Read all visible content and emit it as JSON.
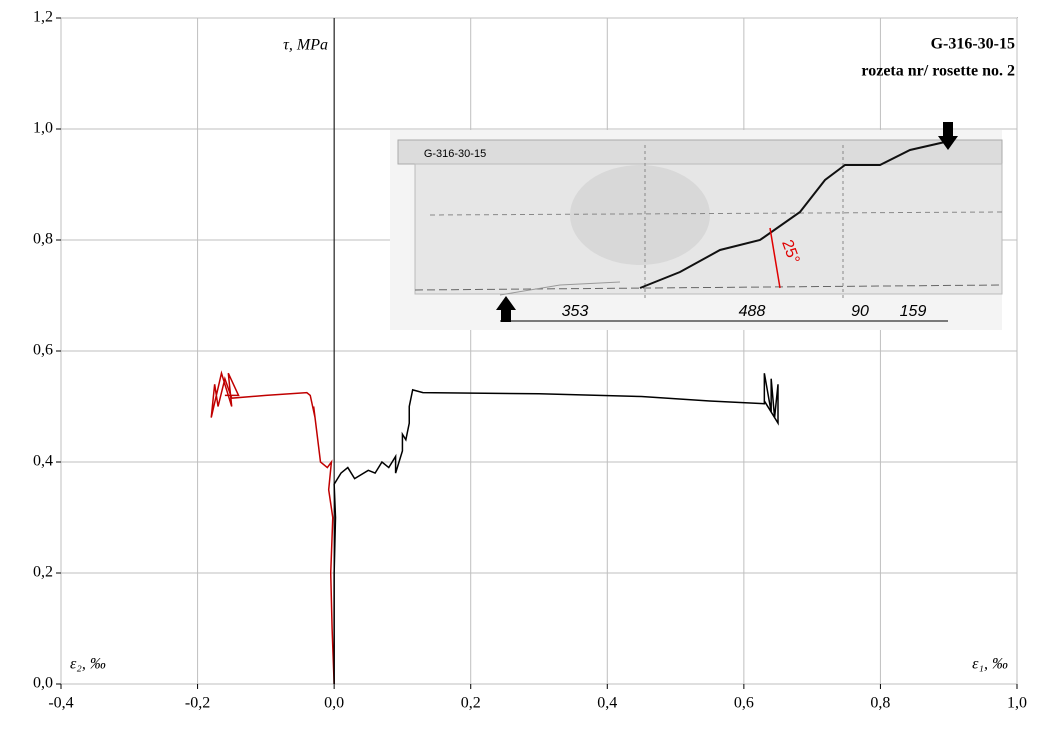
{
  "chart_data": {
    "type": "line",
    "title": "G-316-30-15",
    "subtitle": "rozeta nr/ rosette no. 2",
    "y_label": "τ, MPa",
    "x_label_left": "ε₂, ‰",
    "x_label_right": "ε₁, ‰",
    "xlim": [
      -0.4,
      1.0
    ],
    "ylim": [
      0,
      1.2
    ],
    "xticks": [
      {
        "value": -0.4,
        "label": "-0,4"
      },
      {
        "value": -0.2,
        "label": "-0,2"
      },
      {
        "value": 0,
        "label": "0,0"
      },
      {
        "value": 0.2,
        "label": "0,2"
      },
      {
        "value": 0.4,
        "label": "0,4"
      },
      {
        "value": 0.6,
        "label": "0,6"
      },
      {
        "value": 0.8,
        "label": "0,8"
      },
      {
        "value": 1.0,
        "label": "1,0"
      }
    ],
    "yticks": [
      {
        "value": 0,
        "label": "0,0"
      },
      {
        "value": 0.2,
        "label": "0,2"
      },
      {
        "value": 0.4,
        "label": "0,4"
      },
      {
        "value": 0.6,
        "label": "0,6"
      },
      {
        "value": 0.8,
        "label": "0,8"
      },
      {
        "value": 1.0,
        "label": "1,0"
      },
      {
        "value": 1.2,
        "label": "1,2"
      }
    ],
    "grid": true,
    "series": [
      {
        "color": "#000000",
        "x": [
          0,
          0,
          0.002,
          0,
          0.01,
          0.02,
          0.03,
          0.05,
          0.06,
          0.07,
          0.08,
          0.09,
          0.09,
          0.1,
          0.1,
          0.105,
          0.11,
          0.11,
          0.115,
          0.13,
          0.3,
          0.45,
          0.55,
          0.63,
          0.63,
          0.64,
          0.64,
          0.645,
          0.65,
          0.65,
          0.63
        ],
        "values": [
          0,
          0.2,
          0.3,
          0.36,
          0.38,
          0.39,
          0.37,
          0.385,
          0.38,
          0.4,
          0.39,
          0.41,
          0.38,
          0.42,
          0.45,
          0.44,
          0.47,
          0.5,
          0.53,
          0.525,
          0.523,
          0.518,
          0.51,
          0.505,
          0.56,
          0.49,
          0.55,
          0.48,
          0.54,
          0.47,
          0.51
        ]
      },
      {
        "color": "#c00000",
        "x": [
          0,
          -0.003,
          -0.005,
          -0.002,
          -0.008,
          -0.004,
          -0.01,
          -0.02,
          -0.025,
          -0.03,
          -0.028,
          -0.035,
          -0.04,
          -0.1,
          -0.15,
          -0.16,
          -0.17,
          -0.175,
          -0.18,
          -0.165,
          -0.15,
          -0.155,
          -0.14,
          -0.16
        ],
        "values": [
          0,
          0.1,
          0.2,
          0.3,
          0.35,
          0.4,
          0.39,
          0.4,
          0.45,
          0.5,
          0.48,
          0.52,
          0.525,
          0.52,
          0.515,
          0.55,
          0.5,
          0.54,
          0.48,
          0.56,
          0.5,
          0.56,
          0.52,
          0.52
        ]
      }
    ],
    "inset": {
      "specimen": "G-316-30-15",
      "dimensions": [
        "353",
        "488",
        "90",
        "159"
      ],
      "angle": "25°"
    }
  }
}
